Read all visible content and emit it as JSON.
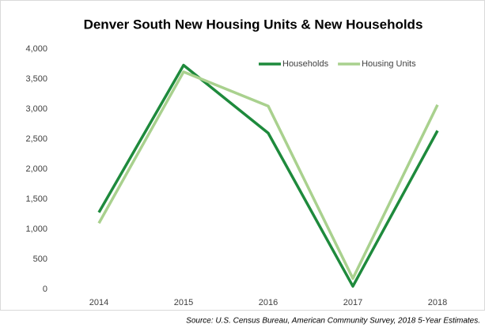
{
  "chart_data": {
    "type": "line",
    "title": "Denver South New Housing Units & New Households",
    "categories": [
      "2014",
      "2015",
      "2016",
      "2017",
      "2018"
    ],
    "series": [
      {
        "name": "Households",
        "color": "#1e8a3c",
        "values": [
          1280,
          3730,
          2600,
          50,
          2640
        ]
      },
      {
        "name": "Housing Units",
        "color": "#a9d18e",
        "values": [
          1100,
          3620,
          3050,
          180,
          3070
        ]
      }
    ],
    "ylim": [
      0,
      4000
    ],
    "yticks": [
      0,
      500,
      {
        "value": 1000,
        "label": "1,000"
      },
      {
        "value": 1500,
        "label": "1,500"
      },
      {
        "value": 2000,
        "label": "2,000"
      },
      {
        "value": 2500,
        "label": "2,500"
      },
      {
        "value": 3000,
        "label": "3,000"
      },
      {
        "value": 3500,
        "label": "3,500"
      },
      {
        "value": 4000,
        "label": "4,000"
      }
    ],
    "grid": false,
    "legend": "top-right",
    "annotation": "Source: U.S. Census Bureau, American Community Survey, 2018 5-Year Estimates."
  }
}
